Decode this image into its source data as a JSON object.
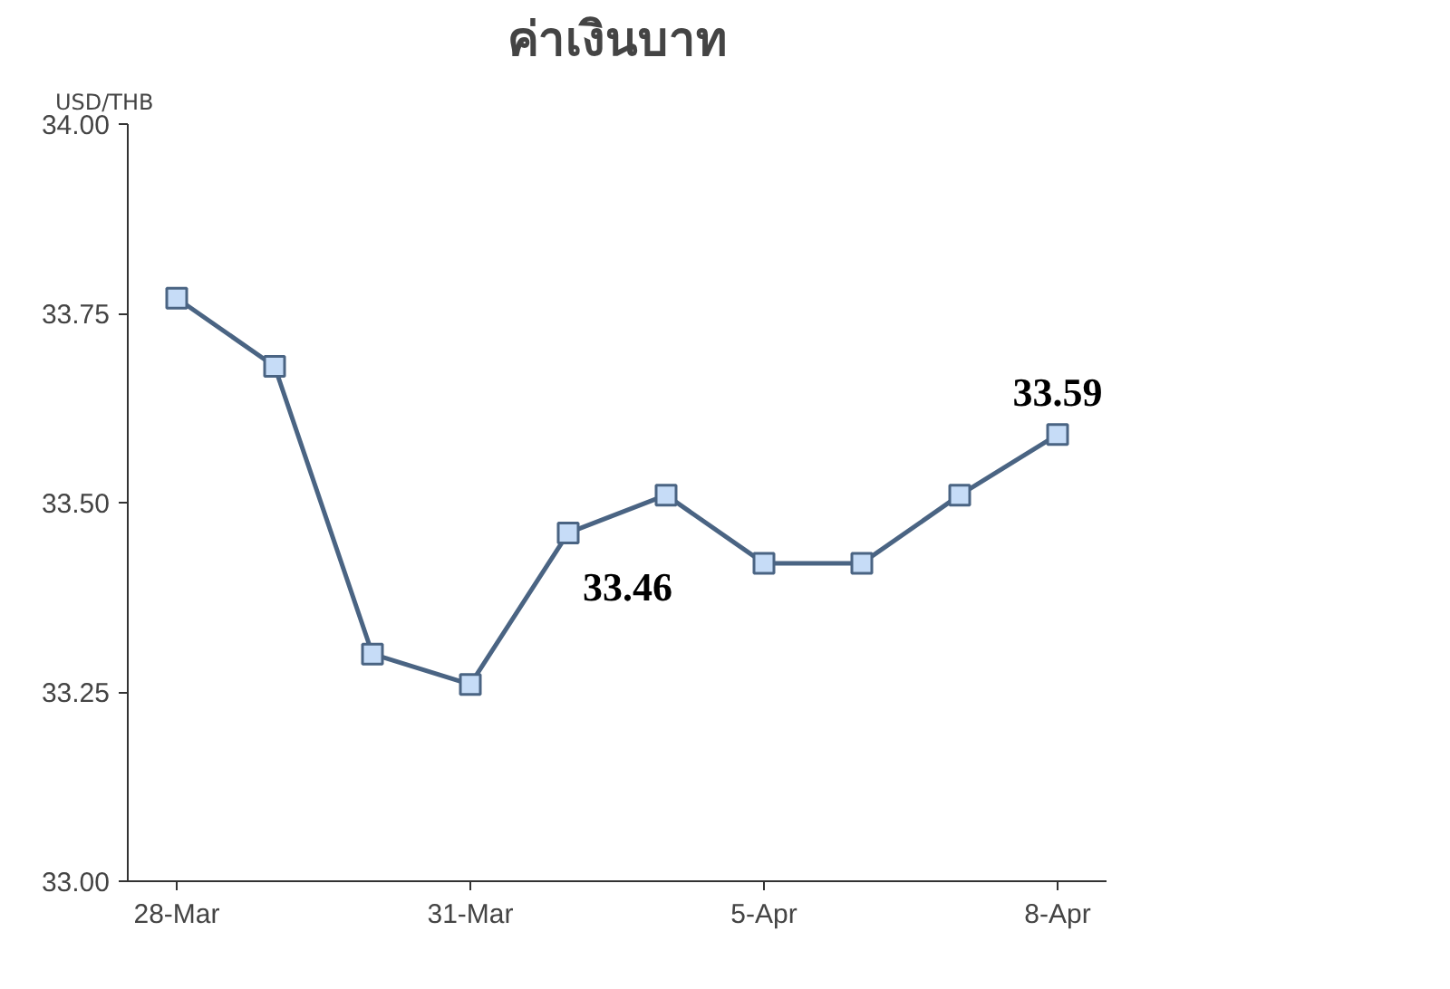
{
  "chart_data": {
    "type": "line",
    "title": "ค่าเงินบาท",
    "ylabel": "USD/THB",
    "categories": [
      "28-Mar",
      null,
      null,
      "31-Mar",
      null,
      null,
      "5-Apr",
      null,
      null,
      "8-Apr"
    ],
    "series": [
      {
        "color": "#4a6483",
        "values": [
          33.77,
          33.68,
          33.3,
          33.26,
          33.46,
          33.51,
          33.42,
          33.42,
          33.51,
          33.59
        ],
        "value_labels": [
          null,
          null,
          null,
          null,
          "33.46",
          null,
          null,
          null,
          null,
          "33.59"
        ]
      }
    ],
    "ylim": [
      33.0,
      34.0
    ],
    "yticks": [
      {
        "value": 33.0,
        "label": "33.00"
      },
      {
        "value": 33.25,
        "label": "33.25"
      },
      {
        "value": 33.5,
        "label": "33.50"
      },
      {
        "value": 33.75,
        "label": "33.75"
      },
      {
        "value": 34.0,
        "label": "34.00"
      }
    ],
    "marker": "square",
    "grid": false
  }
}
